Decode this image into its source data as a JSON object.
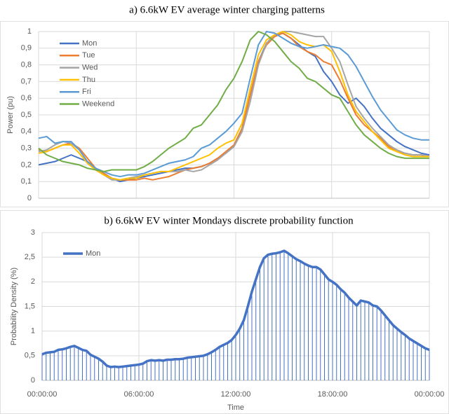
{
  "chart_data": [
    {
      "type": "line",
      "title": "a) 6.6kW EV average winter charging patterns",
      "ylabel": "Power (pu)",
      "x": [
        0,
        0.5,
        1,
        1.5,
        2,
        2.5,
        3,
        3.5,
        4,
        4.5,
        5,
        5.5,
        6,
        6.5,
        7,
        7.5,
        8,
        8.5,
        9,
        9.5,
        10,
        10.5,
        11,
        11.5,
        12,
        12.5,
        13,
        13.5,
        14,
        14.5,
        15,
        15.5,
        16,
        16.5,
        17,
        17.5,
        18,
        18.5,
        19,
        19.5,
        20,
        20.5,
        21,
        21.5,
        22,
        22.5,
        23,
        23.5,
        24
      ],
      "series": [
        {
          "name": "Mon",
          "color": "#4472c4",
          "values": [
            0.2,
            0.21,
            0.22,
            0.24,
            0.26,
            0.24,
            0.22,
            0.18,
            0.15,
            0.12,
            0.1,
            0.11,
            0.12,
            0.13,
            0.14,
            0.15,
            0.16,
            0.17,
            0.18,
            0.18,
            0.19,
            0.21,
            0.24,
            0.27,
            0.31,
            0.42,
            0.62,
            0.82,
            0.93,
            0.98,
            0.99,
            0.96,
            0.92,
            0.88,
            0.85,
            0.76,
            0.7,
            0.62,
            0.57,
            0.6,
            0.55,
            0.48,
            0.42,
            0.38,
            0.34,
            0.31,
            0.29,
            0.27,
            0.26
          ]
        },
        {
          "name": "Tue",
          "color": "#ed7d31",
          "values": [
            0.29,
            0.28,
            0.3,
            0.32,
            0.33,
            0.3,
            0.24,
            0.18,
            0.15,
            0.12,
            0.11,
            0.11,
            0.11,
            0.12,
            0.11,
            0.12,
            0.13,
            0.15,
            0.17,
            0.18,
            0.19,
            0.21,
            0.24,
            0.28,
            0.32,
            0.42,
            0.62,
            0.82,
            0.92,
            0.97,
            0.99,
            0.96,
            0.91,
            0.88,
            0.86,
            0.82,
            0.8,
            0.71,
            0.6,
            0.5,
            0.44,
            0.4,
            0.36,
            0.31,
            0.28,
            0.27,
            0.26,
            0.26,
            0.25
          ]
        },
        {
          "name": "Wed",
          "color": "#a5a5a5",
          "values": [
            0.28,
            0.29,
            0.32,
            0.34,
            0.33,
            0.29,
            0.22,
            0.18,
            0.14,
            0.11,
            0.11,
            0.12,
            0.13,
            0.14,
            0.15,
            0.16,
            0.16,
            0.16,
            0.17,
            0.16,
            0.17,
            0.2,
            0.23,
            0.27,
            0.31,
            0.4,
            0.58,
            0.8,
            0.93,
            0.98,
            1.0,
            1.0,
            0.99,
            0.98,
            0.97,
            0.97,
            0.9,
            0.82,
            0.68,
            0.55,
            0.48,
            0.42,
            0.37,
            0.32,
            0.29,
            0.27,
            0.26,
            0.26,
            0.25
          ]
        },
        {
          "name": "Thu",
          "color": "#ffc000",
          "values": [
            0.27,
            0.28,
            0.3,
            0.32,
            0.32,
            0.27,
            0.21,
            0.17,
            0.14,
            0.12,
            0.11,
            0.12,
            0.12,
            0.14,
            0.15,
            0.16,
            0.16,
            0.18,
            0.2,
            0.22,
            0.24,
            0.26,
            0.3,
            0.33,
            0.35,
            0.45,
            0.66,
            0.86,
            0.95,
            0.98,
            1.0,
            0.98,
            0.94,
            0.92,
            0.91,
            0.92,
            0.88,
            0.76,
            0.62,
            0.52,
            0.46,
            0.4,
            0.35,
            0.3,
            0.28,
            0.26,
            0.25,
            0.25,
            0.25
          ]
        },
        {
          "name": "Fri",
          "color": "#5b9bd5",
          "values": [
            0.36,
            0.37,
            0.33,
            0.34,
            0.34,
            0.29,
            0.22,
            0.18,
            0.16,
            0.14,
            0.13,
            0.14,
            0.14,
            0.15,
            0.17,
            0.19,
            0.21,
            0.22,
            0.23,
            0.25,
            0.3,
            0.32,
            0.36,
            0.4,
            0.45,
            0.51,
            0.72,
            0.92,
            1.0,
            0.99,
            0.96,
            0.93,
            0.91,
            0.9,
            0.91,
            0.92,
            0.91,
            0.9,
            0.86,
            0.79,
            0.7,
            0.61,
            0.53,
            0.47,
            0.41,
            0.38,
            0.36,
            0.35,
            0.35
          ]
        },
        {
          "name": "Weekend",
          "color": "#70ad47",
          "values": [
            0.3,
            0.26,
            0.24,
            0.22,
            0.21,
            0.2,
            0.18,
            0.17,
            0.16,
            0.17,
            0.17,
            0.17,
            0.17,
            0.19,
            0.22,
            0.26,
            0.3,
            0.33,
            0.36,
            0.42,
            0.44,
            0.5,
            0.56,
            0.65,
            0.72,
            0.82,
            0.95,
            1.0,
            0.98,
            0.94,
            0.88,
            0.82,
            0.78,
            0.72,
            0.7,
            0.66,
            0.62,
            0.6,
            0.52,
            0.44,
            0.38,
            0.34,
            0.3,
            0.27,
            0.25,
            0.24,
            0.24,
            0.24,
            0.24
          ]
        }
      ],
      "xlim": [
        0,
        24
      ],
      "xticks": [
        0,
        6,
        12,
        18,
        24
      ],
      "show_xtick_labels": false,
      "ylim": [
        0,
        1
      ],
      "yticks": [
        0,
        {
          "value": 0.1,
          "label": "0,1"
        },
        {
          "value": 0.2,
          "label": "0,2"
        },
        {
          "value": 0.3,
          "label": "0,3"
        },
        {
          "value": 0.4,
          "label": "0,4"
        },
        {
          "value": 0.5,
          "label": "0,5"
        },
        {
          "value": 0.6,
          "label": "0,6"
        },
        {
          "value": 0.7,
          "label": "0,7"
        },
        {
          "value": 0.8,
          "label": "0,8"
        },
        {
          "value": 0.9,
          "label": "0,9"
        },
        1
      ],
      "grid": true,
      "legend": "top-left"
    },
    {
      "type": "stem",
      "title": "b) 6.6kW EV winter Mondays discrete probability function",
      "ylabel": "Probability Density (%)",
      "xlabel": "Time",
      "x": [
        0,
        0.25,
        0.5,
        0.75,
        1,
        1.25,
        1.5,
        1.75,
        2,
        2.25,
        2.5,
        2.75,
        3,
        3.25,
        3.5,
        3.75,
        4,
        4.25,
        4.5,
        4.75,
        5,
        5.25,
        5.5,
        5.75,
        6,
        6.25,
        6.5,
        6.75,
        7,
        7.25,
        7.5,
        7.75,
        8,
        8.25,
        8.5,
        8.75,
        9,
        9.25,
        9.5,
        9.75,
        10,
        10.25,
        10.5,
        10.75,
        11,
        11.25,
        11.5,
        11.75,
        12,
        12.25,
        12.5,
        12.75,
        13,
        13.25,
        13.5,
        13.75,
        14,
        14.25,
        14.5,
        14.75,
        15,
        15.25,
        15.5,
        15.75,
        16,
        16.25,
        16.5,
        16.75,
        17,
        17.25,
        17.5,
        17.75,
        18,
        18.25,
        18.5,
        18.75,
        19,
        19.25,
        19.5,
        19.75,
        20,
        20.25,
        20.5,
        20.75,
        21,
        21.25,
        21.5,
        21.75,
        22,
        22.25,
        22.5,
        22.75,
        23,
        23.25,
        23.5,
        23.75,
        24
      ],
      "series": [
        {
          "name": "Mon",
          "color": "#4472c4",
          "values": [
            0.53,
            0.56,
            0.57,
            0.58,
            0.62,
            0.63,
            0.65,
            0.68,
            0.7,
            0.66,
            0.62,
            0.6,
            0.52,
            0.48,
            0.44,
            0.38,
            0.3,
            0.27,
            0.28,
            0.27,
            0.28,
            0.29,
            0.3,
            0.31,
            0.32,
            0.34,
            0.39,
            0.41,
            0.4,
            0.41,
            0.4,
            0.42,
            0.42,
            0.43,
            0.43,
            0.44,
            0.46,
            0.47,
            0.48,
            0.49,
            0.5,
            0.53,
            0.57,
            0.62,
            0.68,
            0.72,
            0.76,
            0.82,
            0.92,
            1.05,
            1.22,
            1.5,
            1.8,
            2.05,
            2.3,
            2.48,
            2.55,
            2.57,
            2.58,
            2.6,
            2.63,
            2.58,
            2.52,
            2.46,
            2.42,
            2.37,
            2.33,
            2.3,
            2.3,
            2.25,
            2.15,
            2.05,
            2.0,
            1.94,
            1.85,
            1.78,
            1.68,
            1.6,
            1.52,
            1.62,
            1.6,
            1.58,
            1.52,
            1.5,
            1.42,
            1.32,
            1.22,
            1.12,
            1.05,
            0.98,
            0.92,
            0.85,
            0.8,
            0.75,
            0.7,
            0.65,
            0.62
          ]
        }
      ],
      "xlim": [
        0,
        24
      ],
      "xticks": [
        {
          "value": 0,
          "label": "00:00:00"
        },
        {
          "value": 6,
          "label": "06:00:00"
        },
        {
          "value": 12,
          "label": "12:00:00"
        },
        {
          "value": 18,
          "label": "18:00:00"
        },
        {
          "value": 24,
          "label": "00:00:00"
        }
      ],
      "ylim": [
        0,
        3
      ],
      "yticks": [
        0,
        {
          "value": 0.5,
          "label": "0,5"
        },
        1,
        {
          "value": 1.5,
          "label": "1,5"
        },
        2,
        {
          "value": 2.5,
          "label": "2,5"
        },
        3
      ],
      "grid": true,
      "legend": "top-left"
    }
  ]
}
